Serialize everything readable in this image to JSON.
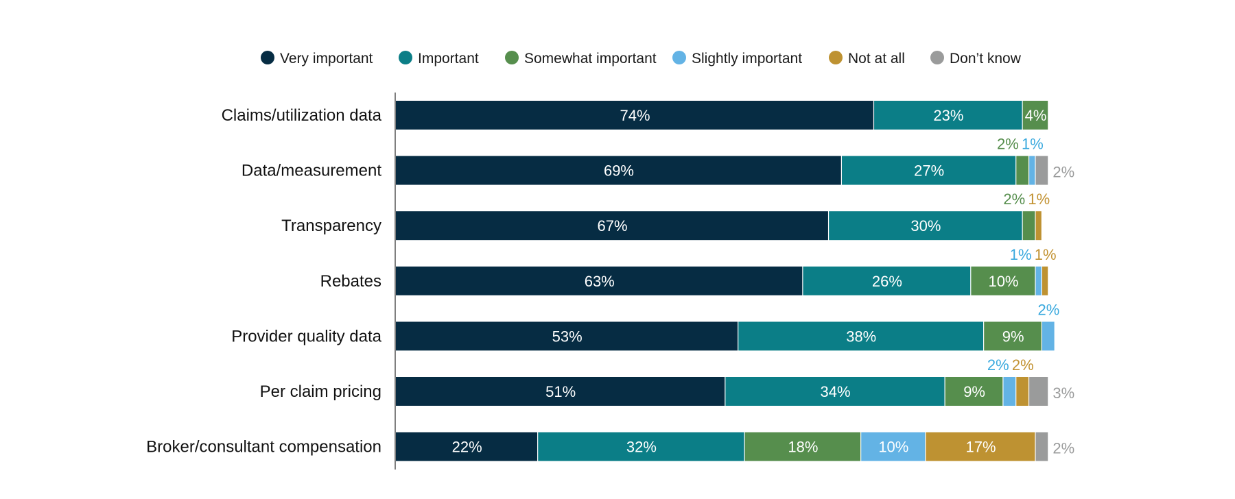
{
  "chart_data": {
    "type": "bar",
    "orientation": "horizontal",
    "stacked": true,
    "title": "",
    "xlabel": "",
    "ylabel": "",
    "xlim": [
      0,
      100
    ],
    "grid": false,
    "legend_position": "top",
    "categories": [
      "Claims/utilization data",
      "Data/measurement",
      "Transparency",
      "Rebates",
      "Provider quality data",
      "Per claim pricing",
      "Broker/consultant compensation"
    ],
    "series": [
      {
        "name": "Very important",
        "color": "#062c43",
        "label_color": "#ffffff",
        "values": [
          74,
          69,
          67,
          63,
          53,
          51,
          22
        ]
      },
      {
        "name": "Important",
        "color": "#0b7e87",
        "label_color": "#ffffff",
        "values": [
          23,
          27,
          30,
          26,
          38,
          34,
          32
        ]
      },
      {
        "name": "Somewhat important",
        "color": "#568e4d",
        "label_color": "#568e4d",
        "values": [
          4,
          2,
          2,
          10,
          9,
          9,
          18
        ]
      },
      {
        "name": "Slightly important",
        "color": "#63b3e5",
        "label_color": "#3aa9de",
        "values": [
          0,
          1,
          0,
          1,
          2,
          2,
          10
        ]
      },
      {
        "name": "Not at all",
        "color": "#be9232",
        "label_color": "#c29232",
        "values": [
          0,
          0,
          1,
          1,
          0,
          2,
          17
        ]
      },
      {
        "name": "Don’t know",
        "color": "#9a9b9b",
        "label_color": "#9a9b9b",
        "values": [
          0,
          2,
          0,
          0,
          0,
          3,
          2
        ]
      }
    ]
  }
}
